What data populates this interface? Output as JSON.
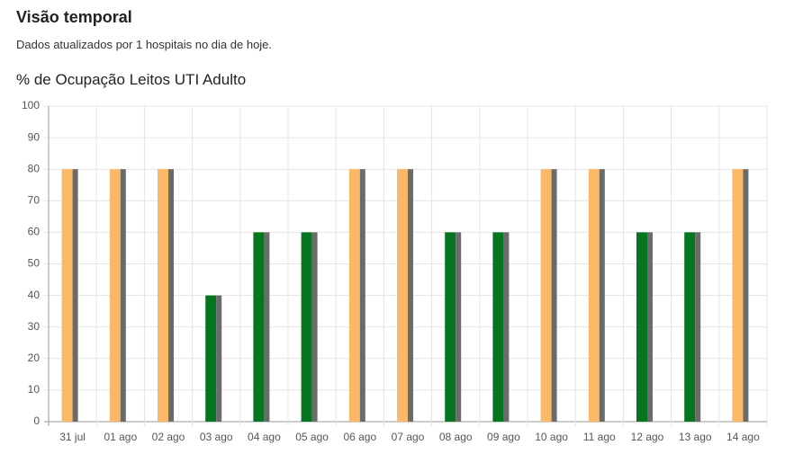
{
  "header": {
    "title": "Visão temporal",
    "subtitle": "Dados atualizados por 1 hospitais no dia de hoje."
  },
  "chart_data": {
    "type": "bar",
    "title": "% de Ocupação Leitos UTI Adulto",
    "categories": [
      "31 jul",
      "01 ago",
      "02 ago",
      "03 ago",
      "04 ago",
      "05 ago",
      "06 ago",
      "07 ago",
      "08 ago",
      "09 ago",
      "10 ago",
      "11 ago",
      "12 ago",
      "13 ago",
      "14 ago"
    ],
    "values": [
      80,
      80,
      80,
      40,
      60,
      60,
      80,
      80,
      60,
      60,
      80,
      80,
      60,
      60,
      80
    ],
    "colors": [
      "#fbb866",
      "#fbb866",
      "#fbb866",
      "#06751f",
      "#06751f",
      "#06751f",
      "#fbb866",
      "#fbb866",
      "#06751f",
      "#06751f",
      "#fbb866",
      "#fbb866",
      "#06751f",
      "#06751f",
      "#fbb866"
    ],
    "shadow_color": "#6b6b6b",
    "ylim": [
      0,
      100
    ],
    "yticks": [
      0,
      10,
      20,
      30,
      40,
      50,
      60,
      70,
      80,
      90,
      100
    ],
    "grid": true
  }
}
